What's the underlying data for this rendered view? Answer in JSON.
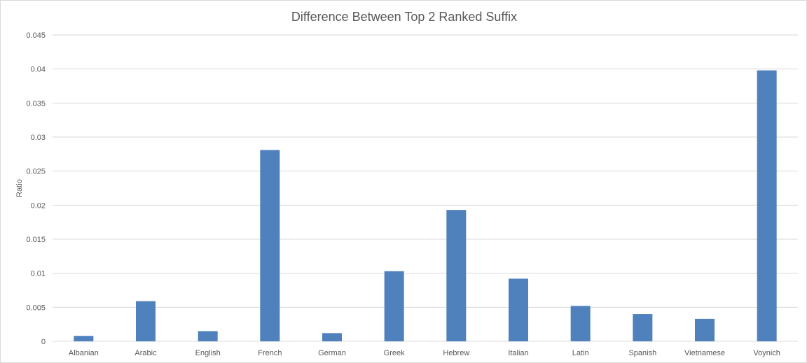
{
  "chart_data": {
    "type": "bar",
    "title": "Difference Between Top 2 Ranked Suffix",
    "xlabel": "",
    "ylabel": "Ratio",
    "categories": [
      "Albanian",
      "Arabic",
      "English",
      "French",
      "German",
      "Greek",
      "Hebrew",
      "Italian",
      "Latin",
      "Spanish",
      "Vietnamese",
      "Voynich"
    ],
    "values": [
      0.0008,
      0.0059,
      0.0015,
      0.0281,
      0.0012,
      0.0103,
      0.0193,
      0.0092,
      0.0052,
      0.004,
      0.0033,
      0.0398
    ],
    "ylim": [
      0,
      0.045
    ],
    "yticks": [
      0,
      0.005,
      0.01,
      0.015,
      0.02,
      0.025,
      0.03,
      0.035,
      0.04,
      0.045
    ],
    "ytick_labels": [
      "0",
      "0.005",
      "0.01",
      "0.015",
      "0.02",
      "0.025",
      "0.03",
      "0.035",
      "0.04",
      "0.045"
    ],
    "grid": true,
    "legend": "none",
    "colors": {
      "bar": "#4f81bd",
      "gridline": "#d9d9d9",
      "text": "#595959",
      "border": "#d9d9d9"
    }
  }
}
